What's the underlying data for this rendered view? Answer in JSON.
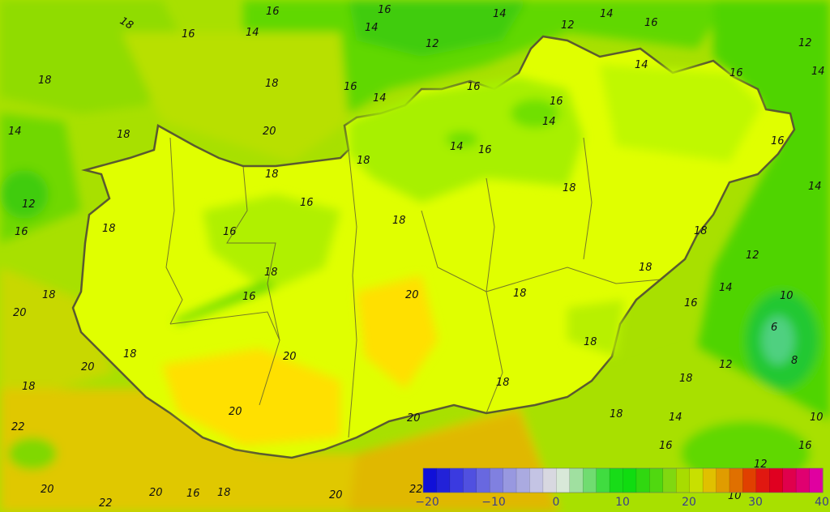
{
  "map": {
    "region_colors": {
      "inside_base": "#e0ff00",
      "warm": "#ffe000",
      "cool_light": "#a8f000",
      "outside_base": "#c8e000",
      "green": "#70dc00",
      "deep_green": "#30d000",
      "border": "#5a5a30"
    },
    "contour_labels": [
      "18",
      "16",
      "16",
      "14",
      "16",
      "14",
      "14",
      "14",
      "16",
      "12",
      "12",
      "12",
      "18",
      "18",
      "16",
      "14",
      "16",
      "16",
      "14",
      "14",
      "16",
      "14",
      "14",
      "18",
      "20",
      "14",
      "16",
      "18",
      "16",
      "18",
      "16",
      "18",
      "14",
      "12",
      "18",
      "16",
      "18",
      "16",
      "18",
      "12",
      "18",
      "18",
      "14",
      "10",
      "18",
      "20",
      "18",
      "16",
      "16",
      "20",
      "6",
      "18",
      "20",
      "18",
      "8",
      "12",
      "20",
      "18",
      "18",
      "18",
      "20",
      "20",
      "18",
      "14",
      "10",
      "22",
      "16",
      "16",
      "12",
      "20",
      "20",
      "16",
      "18",
      "20",
      "22",
      "10",
      "22"
    ]
  },
  "colorbar": {
    "ticks": [
      "−20",
      "−10",
      "0",
      "10",
      "20",
      "30",
      "40"
    ],
    "min": -20,
    "max": 40,
    "step": 2,
    "colors": [
      "#1010d8",
      "#2222d8",
      "#3a3ae0",
      "#5050e0",
      "#6868e0",
      "#8080e0",
      "#9898e0",
      "#aaaae0",
      "#c4c4e4",
      "#d8d8e0",
      "#d8e8d8",
      "#a0e0a0",
      "#70dc70",
      "#40dc40",
      "#18dc18",
      "#10dc10",
      "#30d810",
      "#50d810",
      "#80d810",
      "#a8dc00",
      "#c8e000",
      "#e0c000",
      "#e09c00",
      "#e07000",
      "#e04000",
      "#e01810",
      "#e00020",
      "#e0004c",
      "#e00070",
      "#e000a0"
    ]
  }
}
